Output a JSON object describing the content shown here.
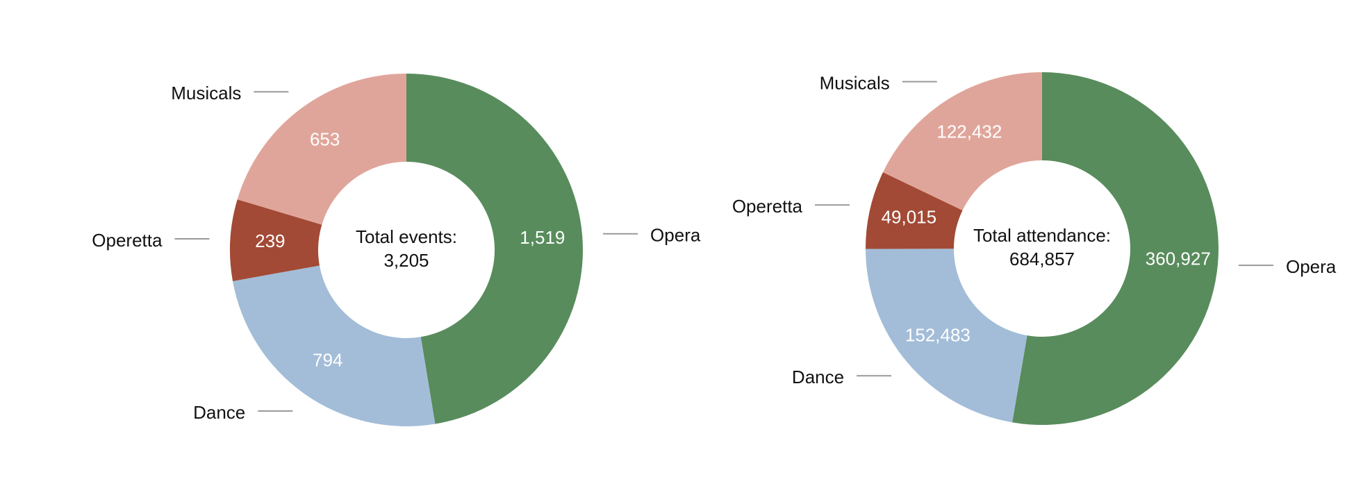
{
  "chart_data": [
    {
      "type": "pie",
      "donut": true,
      "categories": [
        "Opera",
        "Dance",
        "Operetta",
        "Musicals"
      ],
      "values": [
        1519,
        794,
        239,
        653
      ],
      "value_labels": [
        "1,519",
        "794",
        "239",
        "653"
      ],
      "colors": [
        "#588c5c",
        "#a3bdd8",
        "#a24a35",
        "#e0a59a"
      ],
      "center_text": [
        "Total events:",
        "3,205"
      ]
    },
    {
      "type": "pie",
      "donut": true,
      "categories": [
        "Opera",
        "Dance",
        "Operetta",
        "Musicals"
      ],
      "values": [
        360927,
        152483,
        49015,
        122432
      ],
      "value_labels": [
        "360,927",
        "152,483",
        "49,015",
        "122,432"
      ],
      "colors": [
        "#588c5c",
        "#a3bdd8",
        "#a24a35",
        "#e0a59a"
      ],
      "center_text": [
        "Total attendance:",
        "684,857"
      ]
    }
  ]
}
